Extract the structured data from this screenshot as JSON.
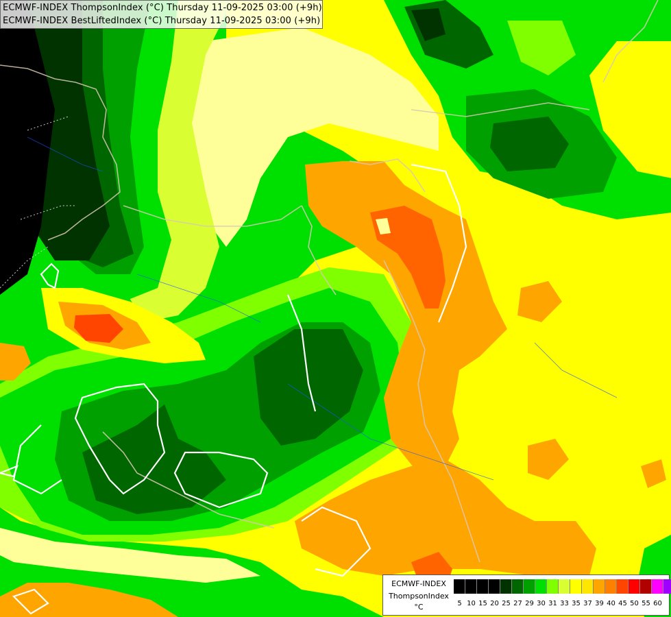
{
  "header": {
    "line1": "ECMWF-INDEX ThompsonIndex (°C) Thursday 11-09-2025 03:00 (+9h)",
    "line2": "ECMWF-INDEX BestLiftedIndex (°C) Thursday 11-09-2025 03:00 (+9h)"
  },
  "legend": {
    "model": "ECMWF-INDEX",
    "param": "ThompsonIndex",
    "unit": "°C",
    "ticks": [
      "5",
      "10",
      "15",
      "20",
      "25",
      "27",
      "29",
      "30",
      "31",
      "33",
      "35",
      "37",
      "39",
      "40",
      "45",
      "50",
      "55",
      "60"
    ],
    "colors": [
      "#000000",
      "#000000",
      "#000000",
      "#000000",
      "#003300",
      "#006600",
      "#00a000",
      "#00e000",
      "#80ff00",
      "#d9ff33",
      "#ffff00",
      "#ffe600",
      "#ffa500",
      "#ff7f00",
      "#ff4500",
      "#ff0000",
      "#b00000",
      "#ff00ff",
      "#a000ff",
      "#6000ff",
      "#0000ff"
    ]
  },
  "map_colors": {
    "black": "#000000",
    "very_dark_green": "#003300",
    "dark_green": "#006600",
    "mid_green": "#00a000",
    "bright_green": "#00e000",
    "lime": "#80ff00",
    "yellow_green": "#d9ff33",
    "light_yellow": "#ffff99",
    "yellow": "#ffff00",
    "orange": "#ffa500",
    "dark_orange": "#ff6400",
    "red_orange": "#ff4500"
  }
}
